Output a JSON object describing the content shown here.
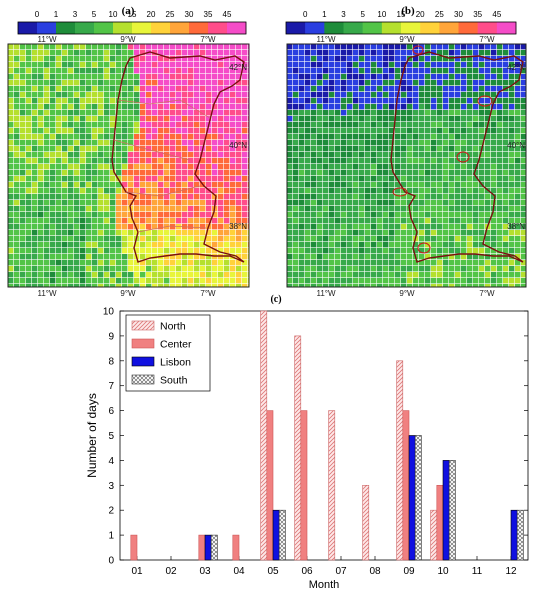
{
  "panels": {
    "a": {
      "label": "(a)",
      "map_fill": "grid-intensity-a"
    },
    "b": {
      "label": "(b)",
      "map_fill": "grid-intensity-b"
    },
    "c": {
      "label": "(c)"
    }
  },
  "colorbar": {
    "ticks": [
      "0",
      "1",
      "3",
      "5",
      "10",
      "15",
      "20",
      "25",
      "30",
      "35",
      "45"
    ],
    "colors": [
      "#1a1aa8",
      "#2a3ee0",
      "#1e8c3a",
      "#37a94a",
      "#52c447",
      "#b5e02e",
      "#e8f53a",
      "#ffd23a",
      "#ffa53a",
      "#ff6a3a",
      "#ff4d8a",
      "#f54cc8"
    ]
  },
  "map_axes": {
    "lon_labels": [
      "11°W",
      "9°W",
      "7°W"
    ],
    "lat_labels": [
      "42°N",
      "40°N",
      "38°N"
    ]
  },
  "chart_data": {
    "type": "bar",
    "categories": [
      "01",
      "02",
      "03",
      "04",
      "05",
      "06",
      "07",
      "08",
      "09",
      "10",
      "11",
      "12"
    ],
    "series": [
      {
        "name": "North",
        "values": [
          0,
          0,
          0,
          0,
          10,
          9,
          6,
          3,
          8,
          2,
          0,
          0
        ]
      },
      {
        "name": "Center",
        "values": [
          1,
          0,
          1,
          1,
          6,
          6,
          0,
          0,
          6,
          3,
          0,
          0
        ]
      },
      {
        "name": "Lisbon",
        "values": [
          0,
          0,
          1,
          0,
          2,
          0,
          0,
          0,
          5,
          4,
          0,
          2
        ]
      },
      {
        "name": "South",
        "values": [
          0,
          0,
          1,
          0,
          2,
          0,
          0,
          0,
          5,
          4,
          0,
          2
        ]
      }
    ],
    "xlabel": "Month",
    "ylabel": "Number of days",
    "ylim": [
      0,
      10
    ],
    "yticks": [
      "0",
      "1",
      "2",
      "3",
      "4",
      "5",
      "6",
      "7",
      "8",
      "9",
      "10"
    ],
    "legend": "top-left",
    "series_colors": {
      "North": "#f2b3b3",
      "Center": "#f08080",
      "Lisbon": "#1010e0",
      "South": "#ffffff"
    }
  }
}
